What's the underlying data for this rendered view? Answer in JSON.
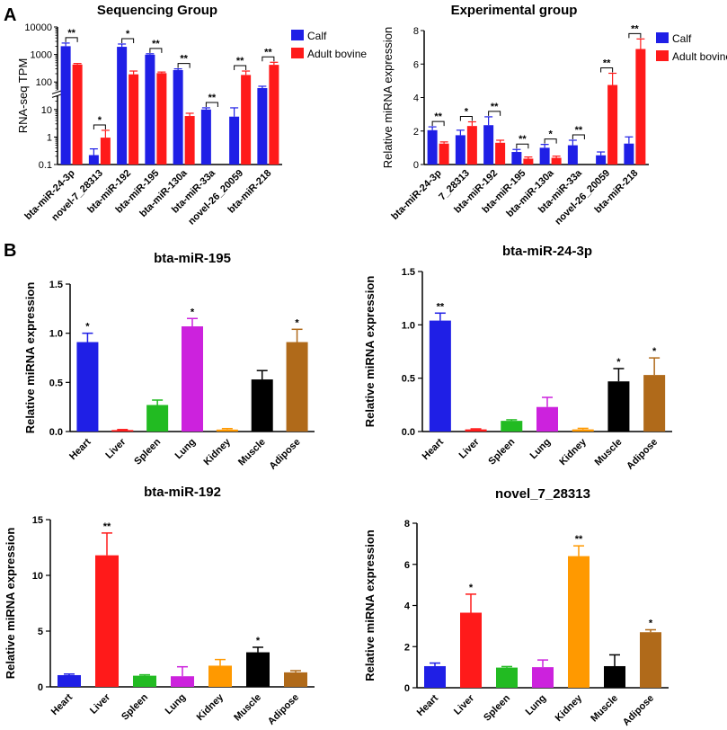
{
  "panel_labels": {
    "a": "A",
    "b": "B"
  },
  "chart_data": [
    {
      "id": "seq",
      "type": "bar",
      "title": "Sequencing Group",
      "ylabel": "RNA-seq TPM",
      "xlabel": "",
      "yscale": "log",
      "ylim": [
        0.1,
        10000
      ],
      "y_tick_labels": [
        "0.1",
        "1",
        "10",
        "100",
        "1000",
        "10000"
      ],
      "categories": [
        "bta-miR-24-3p",
        "novel-7_28313",
        "bta-miR-192",
        "bta-miR-195",
        "bta-miR-130a",
        "bta-miR-33a",
        "novel-26_20059",
        "bta-miR-218"
      ],
      "series": [
        {
          "name": "Calf",
          "color": "#1f1fe6",
          "values": [
            2000,
            0.22,
            1900,
            980,
            270,
            10,
            5.5,
            60
          ],
          "errors": [
            600,
            0.15,
            500,
            80,
            30,
            1.5,
            6,
            10
          ]
        },
        {
          "name": "Adult  bovine",
          "color": "#ff1a1a",
          "values": [
            430,
            0.95,
            190,
            210,
            5.8,
            0,
            180,
            420
          ],
          "errors": [
            40,
            0.8,
            60,
            20,
            1.5,
            0,
            70,
            100
          ]
        }
      ],
      "significance": [
        "**",
        "*",
        "*",
        "**",
        "**",
        "**",
        "**",
        "**"
      ],
      "legend_position": "top-right"
    },
    {
      "id": "exp",
      "type": "bar",
      "title": "Experimental group",
      "ylabel": "Relative miRNA expression",
      "xlabel": "",
      "ylim": [
        0,
        8
      ],
      "y_tick_labels": [
        "0",
        "2",
        "4",
        "6",
        "8"
      ],
      "categories": [
        "bta-miR-24-3p",
        "7_28313",
        "bta-miR-192",
        "bta-miR-195",
        "bta-miR-130a",
        "bta-miR-33a",
        "novel-26_20059",
        "bta-miR-218"
      ],
      "series": [
        {
          "name": "Calf",
          "color": "#1f1fe6",
          "values": [
            2.05,
            1.75,
            2.35,
            0.75,
            1.0,
            1.15,
            0.55,
            1.25
          ],
          "errors": [
            0.2,
            0.3,
            0.5,
            0.15,
            0.2,
            0.3,
            0.2,
            0.4
          ]
        },
        {
          "name": "Adult bovine",
          "color": "#ff1a1a",
          "values": [
            1.25,
            2.3,
            1.3,
            0.35,
            0.4,
            0,
            4.75,
            6.9
          ],
          "errors": [
            0.1,
            0.25,
            0.15,
            0.1,
            0.1,
            0,
            0.7,
            0.6
          ]
        }
      ],
      "significance": [
        "**",
        "*",
        "**",
        "**",
        "*",
        "**",
        "**",
        "**"
      ],
      "legend_position": "top-right"
    },
    {
      "id": "b195",
      "type": "bar",
      "title": "bta-miR-195",
      "ylabel": "Relative miRNA expression",
      "xlabel": "",
      "ylim": [
        0,
        1.5
      ],
      "y_tick_labels": [
        "0.0",
        "0.5",
        "1.0",
        "1.5"
      ],
      "categories": [
        "Heart",
        "Liver",
        "Spleen",
        "Lung",
        "Kidney",
        "Muscle",
        "Adipose"
      ],
      "colors": [
        "#1f1fe6",
        "#ff1a1a",
        "#22bb22",
        "#cc22dd",
        "#ff9900",
        "#000000",
        "#b06a1a"
      ],
      "values": [
        0.91,
        0.015,
        0.27,
        1.07,
        0.02,
        0.53,
        0.91
      ],
      "errors": [
        0.09,
        0.005,
        0.05,
        0.08,
        0.01,
        0.09,
        0.13
      ],
      "significance": [
        "*",
        "",
        "",
        "*",
        "",
        "",
        "*"
      ]
    },
    {
      "id": "b243p",
      "type": "bar",
      "title": "bta-miR-24-3p",
      "ylabel": "Relative miRNA expression",
      "xlabel": "",
      "ylim": [
        0,
        1.5
      ],
      "y_tick_labels": [
        "0.0",
        "0.5",
        "1.0",
        "1.5"
      ],
      "categories": [
        "Heart",
        "Liver",
        "Spleen",
        "Lung",
        "Kidney",
        "Muscle",
        "Adipose"
      ],
      "colors": [
        "#1f1fe6",
        "#ff1a1a",
        "#22bb22",
        "#cc22dd",
        "#ff9900",
        "#000000",
        "#b06a1a"
      ],
      "values": [
        1.04,
        0.02,
        0.1,
        0.23,
        0.02,
        0.47,
        0.53
      ],
      "errors": [
        0.07,
        0.005,
        0.01,
        0.09,
        0.01,
        0.12,
        0.16
      ],
      "significance": [
        "**",
        "",
        "",
        "",
        "",
        "*",
        "*"
      ]
    },
    {
      "id": "b192",
      "type": "bar",
      "title": "bta-miR-192",
      "ylabel": "Relative miRNA expression",
      "xlabel": "",
      "ylim": [
        0,
        15
      ],
      "y_tick_labels": [
        "0",
        "5",
        "10",
        "15"
      ],
      "categories": [
        "Heart",
        "Liver",
        "Spleen",
        "Lung",
        "Kidney",
        "Muscle",
        "Adipose"
      ],
      "colors": [
        "#1f1fe6",
        "#ff1a1a",
        "#22bb22",
        "#cc22dd",
        "#ff9900",
        "#000000",
        "#b06a1a"
      ],
      "values": [
        1.05,
        11.8,
        1.0,
        0.95,
        1.9,
        3.1,
        1.3
      ],
      "errors": [
        0.1,
        2.0,
        0.08,
        0.85,
        0.55,
        0.45,
        0.15
      ],
      "significance": [
        "",
        "**",
        "",
        "",
        "",
        "*",
        ""
      ]
    },
    {
      "id": "bnovel",
      "type": "bar",
      "title": "novel_7_28313",
      "ylabel": "Relative miRNA expression",
      "xlabel": "",
      "ylim": [
        0,
        8
      ],
      "y_tick_labels": [
        "0",
        "2",
        "4",
        "6",
        "8"
      ],
      "categories": [
        "Heart",
        "Liver",
        "Spleen",
        "Lung",
        "Kidney",
        "Muscle",
        "Adipose"
      ],
      "colors": [
        "#1f1fe6",
        "#ff1a1a",
        "#22bb22",
        "#cc22dd",
        "#ff9900",
        "#000000",
        "#b06a1a"
      ],
      "values": [
        1.05,
        3.65,
        0.98,
        1.0,
        6.4,
        1.05,
        2.7
      ],
      "errors": [
        0.15,
        0.9,
        0.05,
        0.35,
        0.5,
        0.55,
        0.12
      ],
      "significance": [
        "",
        "*",
        "",
        "",
        "**",
        "",
        "*"
      ]
    }
  ]
}
